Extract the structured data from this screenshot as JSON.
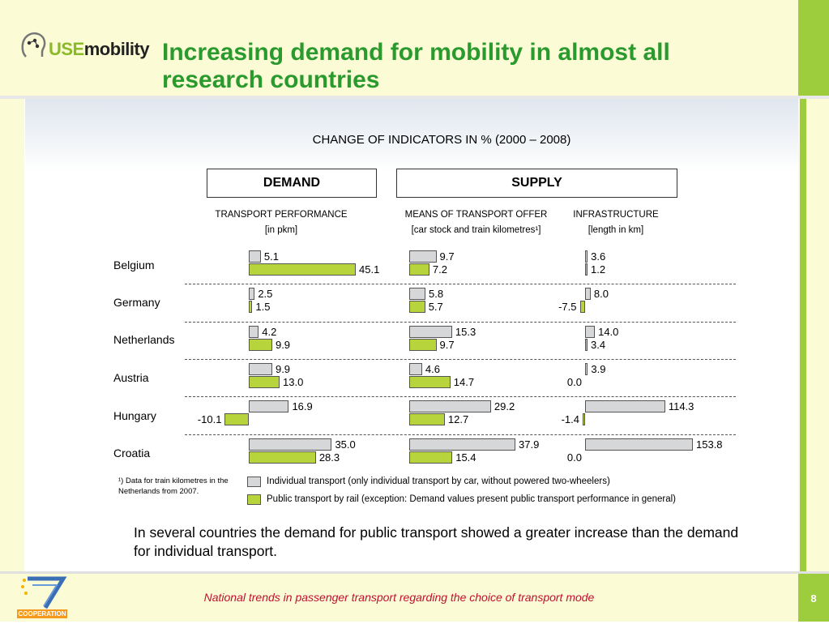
{
  "header": {
    "logo_text_use": "USE",
    "logo_text_mobility": "mobility",
    "title": "Increasing demand for mobility in almost all research countries"
  },
  "chart_data": {
    "type": "bar",
    "title": "CHANGE OF INDICATORS IN % (2000 – 2008)",
    "groups": {
      "demand": "DEMAND",
      "supply": "SUPPLY"
    },
    "panels": [
      {
        "key": "transport_performance",
        "title": "TRANSPORT PERFORMANCE",
        "unit": "[in pkm]",
        "group": "demand",
        "scale_max": 45.1
      },
      {
        "key": "means_of_transport_offer",
        "title": "MEANS OF TRANSPORT OFFER",
        "unit": "[car stock and train kilometres¹]",
        "group": "supply",
        "scale_max": 37.9
      },
      {
        "key": "infrastructure",
        "title": "INFRASTRUCTURE",
        "unit": "[length in km]",
        "group": "supply",
        "scale_max": 153.8
      }
    ],
    "categories": [
      "Belgium",
      "Germany",
      "Netherlands",
      "Austria",
      "Hungary",
      "Croatia"
    ],
    "series": [
      {
        "name": "Individual transport (only individual transport by car, without powered two-wheelers)",
        "color": "#d5d7d9",
        "transport_performance": [
          5.1,
          2.5,
          4.2,
          9.9,
          16.9,
          35.0
        ],
        "means_of_transport_offer": [
          9.7,
          5.8,
          15.3,
          4.6,
          29.2,
          37.9
        ],
        "infrastructure": [
          3.6,
          8.0,
          14.0,
          3.9,
          114.3,
          153.8
        ]
      },
      {
        "name": "Public transport by rail (exception: Demand values present public transport performance in general)",
        "color": "#b8d43c",
        "transport_performance": [
          45.1,
          1.5,
          9.9,
          13.0,
          -10.1,
          28.3
        ],
        "means_of_transport_offer": [
          7.2,
          5.7,
          9.7,
          14.7,
          12.7,
          15.4
        ],
        "infrastructure": [
          1.2,
          -7.5,
          3.4,
          0.0,
          -1.4,
          0.0
        ]
      }
    ],
    "footnote": "¹) Data for train kilometres in the Netherlands from 2007."
  },
  "caption": "In several countries the demand for public transport showed a greater increase than the demand for individual transport.",
  "footer": {
    "text": "National trends in passenger transport regarding the choice of transport mode",
    "page_number": "8",
    "fp7_label": "COOPERATION"
  }
}
